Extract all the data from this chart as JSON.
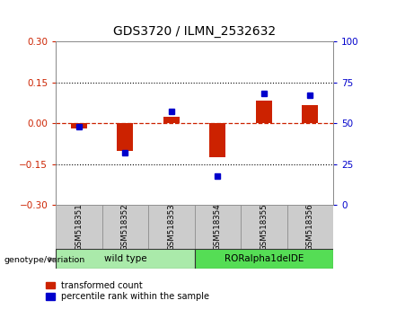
{
  "title": "GDS3720 / ILMN_2532632",
  "samples": [
    "GSM518351",
    "GSM518352",
    "GSM518353",
    "GSM518354",
    "GSM518355",
    "GSM518356"
  ],
  "red_values": [
    -0.018,
    -0.1,
    0.022,
    -0.125,
    0.082,
    0.068
  ],
  "blue_values": [
    48,
    32,
    57,
    18,
    68,
    67
  ],
  "ylim_left": [
    -0.3,
    0.3
  ],
  "ylim_right": [
    0,
    100
  ],
  "yticks_left": [
    -0.3,
    -0.15,
    0,
    0.15,
    0.3
  ],
  "yticks_right": [
    0,
    25,
    50,
    75,
    100
  ],
  "hline_dotted": [
    0.15,
    -0.15
  ],
  "red_color": "#CC2200",
  "blue_color": "#0000CC",
  "zero_line_color": "#CC2200",
  "group1_label": "wild type",
  "group2_label": "RORalpha1delDE",
  "group1_indices": [
    0,
    1,
    2
  ],
  "group2_indices": [
    3,
    4,
    5
  ],
  "group1_color": "#AAEAAA",
  "group2_color": "#55DD55",
  "legend_red": "transformed count",
  "legend_blue": "percentile rank within the sample",
  "bar_width": 0.35
}
